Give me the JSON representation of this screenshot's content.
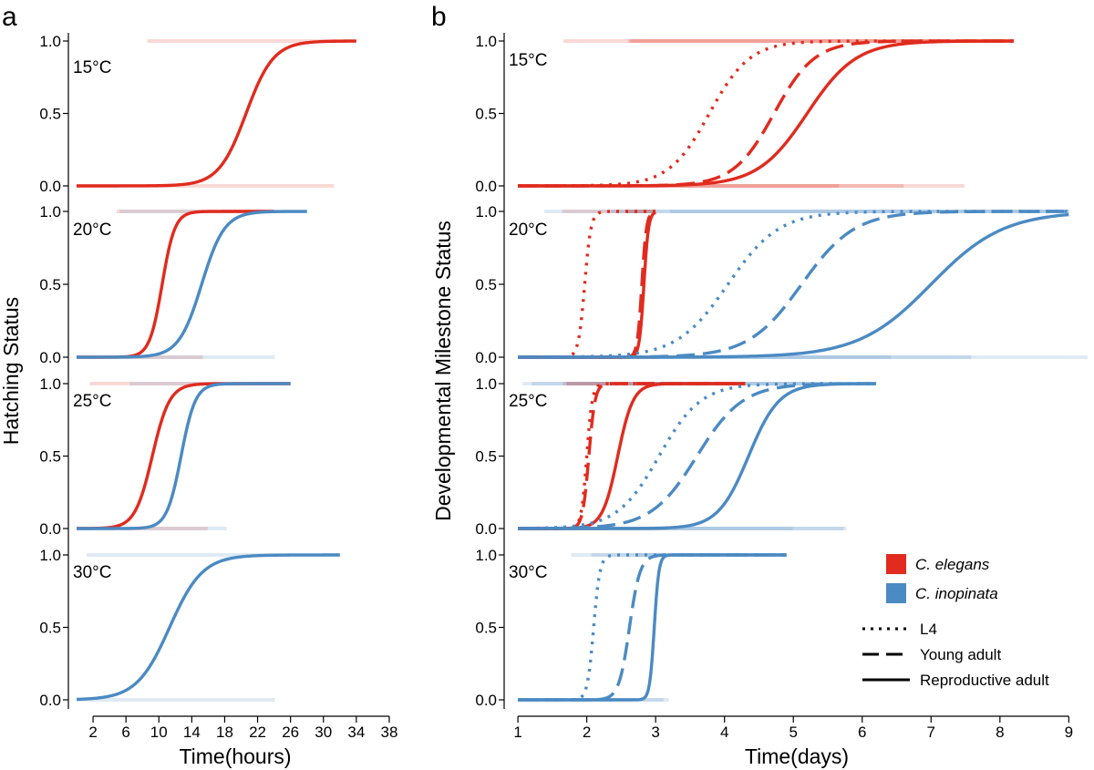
{
  "colors": {
    "c_elegans": "#e02b1e",
    "c_inopinata": "#4b8ac3",
    "axis": "#000000"
  },
  "legend": {
    "species": [
      {
        "label": "C. elegans",
        "color": "#e02b1e"
      },
      {
        "label": "C. inopinata",
        "color": "#4b8ac3"
      }
    ],
    "milestones": [
      {
        "label": "L4",
        "dash": "dotted"
      },
      {
        "label": "Young adult",
        "dash": "dashed"
      },
      {
        "label": "Reproductive adult",
        "dash": "solid"
      }
    ]
  },
  "chart_data": [
    {
      "type": "line",
      "panel": "a",
      "xlabel": "Time(hours)",
      "ylabel": "Hatching Status",
      "xlim": [
        -1,
        40
      ],
      "ylim": [
        0,
        1
      ],
      "xticks": [
        2,
        6,
        10,
        14,
        18,
        22,
        26,
        30,
        34,
        38
      ],
      "yticks": [
        "0.0",
        "0.5",
        "1.0"
      ],
      "facets": [
        {
          "label": "15°C",
          "series": [
            {
              "species": "C. elegans",
              "milestone": "Hatching",
              "midpoint": 20.6,
              "rate": 0.6,
              "x": [
                0,
                34
              ]
            }
          ]
        },
        {
          "label": "20°C",
          "series": [
            {
              "species": "C. elegans",
              "milestone": "Hatching",
              "midpoint": 10.4,
              "rate": 1.3,
              "x": [
                0,
                24
              ]
            },
            {
              "species": "C. inopinata",
              "milestone": "Hatching",
              "midpoint": 15.2,
              "rate": 0.72,
              "x": [
                0,
                28
              ]
            }
          ]
        },
        {
          "label": "25°C",
          "series": [
            {
              "species": "C. elegans",
              "milestone": "Hatching",
              "midpoint": 9.2,
              "rate": 0.95,
              "x": [
                0,
                26
              ]
            },
            {
              "species": "C. inopinata",
              "milestone": "Hatching",
              "midpoint": 12.7,
              "rate": 1.15,
              "x": [
                0,
                26
              ]
            }
          ]
        },
        {
          "label": "30°C",
          "series": [
            {
              "species": "C. inopinata",
              "milestone": "Hatching",
              "midpoint": 11.3,
              "rate": 0.5,
              "x": [
                0,
                32
              ]
            }
          ]
        }
      ]
    },
    {
      "type": "line",
      "panel": "b",
      "xlabel": "Time(days)",
      "ylabel": "Developmental Milestone Status",
      "xlim": [
        0.8,
        9.3
      ],
      "ylim": [
        0,
        1
      ],
      "xticks": [
        1,
        2,
        3,
        4,
        5,
        6,
        7,
        8,
        9
      ],
      "yticks": [
        "0.0",
        "0.5",
        "1.0"
      ],
      "facets": [
        {
          "label": "15°C",
          "series": [
            {
              "species": "C. elegans",
              "milestone": "L4",
              "midpoint": 3.78,
              "rate": 3.4,
              "x": [
                1,
                8.2
              ]
            },
            {
              "species": "C. elegans",
              "milestone": "Young adult",
              "midpoint": 4.72,
              "rate": 3.4,
              "x": [
                1,
                8.2
              ]
            },
            {
              "species": "C. elegans",
              "milestone": "Reproductive adult",
              "midpoint": 5.2,
              "rate": 2.8,
              "x": [
                1,
                8.2
              ]
            }
          ]
        },
        {
          "label": "20°C",
          "series": [
            {
              "species": "C. elegans",
              "milestone": "L4",
              "midpoint": 1.97,
              "rate": 22,
              "x": [
                1,
                3.0
              ]
            },
            {
              "species": "C. elegans",
              "milestone": "Young adult",
              "midpoint": 2.8,
              "rate": 30,
              "x": [
                1,
                3.0
              ]
            },
            {
              "species": "C. elegans",
              "milestone": "Reproductive adult",
              "midpoint": 2.83,
              "rate": 30,
              "x": [
                1,
                3.0
              ]
            },
            {
              "species": "C. inopinata",
              "milestone": "L4",
              "midpoint": 4.05,
              "rate": 2.7,
              "x": [
                1,
                9.0
              ]
            },
            {
              "species": "C. inopinata",
              "milestone": "Young adult",
              "midpoint": 5.12,
              "rate": 2.6,
              "x": [
                1,
                9.0
              ]
            },
            {
              "species": "C. inopinata",
              "milestone": "Reproductive adult",
              "midpoint": 7.0,
              "rate": 1.9,
              "x": [
                1,
                9.0
              ]
            }
          ]
        },
        {
          "label": "25°C",
          "series": [
            {
              "species": "C. elegans",
              "milestone": "L4",
              "midpoint": 2.0,
              "rate": 25,
              "x": [
                1,
                4.3
              ]
            },
            {
              "species": "C. elegans",
              "milestone": "Young adult",
              "midpoint": 2.03,
              "rate": 22,
              "x": [
                1,
                4.3
              ]
            },
            {
              "species": "C. elegans",
              "milestone": "Reproductive adult",
              "midpoint": 2.45,
              "rate": 9,
              "x": [
                1,
                4.3
              ]
            },
            {
              "species": "C. inopinata",
              "milestone": "L4",
              "midpoint": 3.05,
              "rate": 3.3,
              "x": [
                1,
                6.2
              ]
            },
            {
              "species": "C. inopinata",
              "milestone": "Young adult",
              "midpoint": 3.6,
              "rate": 3.0,
              "x": [
                1,
                6.2
              ]
            },
            {
              "species": "C. inopinata",
              "milestone": "Reproductive adult",
              "midpoint": 4.35,
              "rate": 4.5,
              "x": [
                1,
                6.2
              ]
            }
          ]
        },
        {
          "label": "30°C",
          "series": [
            {
              "species": "C. inopinata",
              "milestone": "L4",
              "midpoint": 2.1,
              "rate": 22,
              "x": [
                1,
                4.9
              ]
            },
            {
              "species": "C. inopinata",
              "milestone": "Young adult",
              "midpoint": 2.62,
              "rate": 13,
              "x": [
                1,
                4.9
              ]
            },
            {
              "species": "C. inopinata",
              "milestone": "Reproductive adult",
              "midpoint": 2.98,
              "rate": 30,
              "x": [
                1,
                4.9
              ]
            }
          ]
        }
      ]
    }
  ],
  "panels": {
    "a": {
      "letter": "a",
      "xlabel": "Time(hours)",
      "ylabel": "Hatching Status",
      "xticks": [
        "2",
        "6",
        "10",
        "14",
        "18",
        "22",
        "26",
        "30",
        "34",
        "38"
      ],
      "yticks": [
        "0.0",
        "0.5",
        "1.0"
      ],
      "facets": [
        "15°C",
        "20°C",
        "25°C",
        "30°C"
      ]
    },
    "b": {
      "letter": "b",
      "xlabel": "Time(days)",
      "ylabel": "Developmental Milestone Status",
      "xticks": [
        "1",
        "2",
        "3",
        "4",
        "5",
        "6",
        "7",
        "8",
        "9"
      ],
      "yticks": [
        "0.0",
        "0.5",
        "1.0"
      ],
      "facets": [
        "15°C",
        "20°C",
        "25°C",
        "30°C"
      ]
    }
  }
}
